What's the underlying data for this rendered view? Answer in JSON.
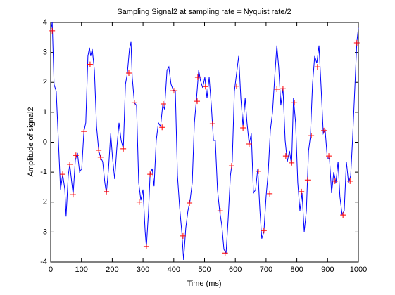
{
  "chart_data": {
    "type": "line",
    "title": "Sampling Signal2 at sampling rate = Nyquist rate/2",
    "xlabel": "Time (ms)",
    "ylabel": "Amplitude of signal2",
    "xlim": [
      0,
      1000
    ],
    "ylim": [
      -4,
      4
    ],
    "xticks": [
      0,
      100,
      200,
      300,
      400,
      500,
      600,
      700,
      800,
      900,
      1000
    ],
    "yticks": [
      -4,
      -3,
      -2,
      -1,
      0,
      1,
      2,
      3,
      4
    ],
    "series": [
      {
        "color": "#0000ff",
        "marker": "none",
        "x": [
          0,
          5,
          11,
          18,
          25,
          32,
          39,
          46,
          50,
          57,
          62,
          66,
          73,
          80,
          87,
          94,
          101,
          108,
          114,
          121,
          126,
          130,
          135,
          142,
          149,
          156,
          162,
          169,
          176,
          181,
          188,
          195,
          201,
          208,
          215,
          222,
          229,
          236,
          243,
          249,
          256,
          261,
          265,
          272,
          279,
          286,
          293,
          300,
          307,
          311,
          318,
          323,
          330,
          336,
          343,
          350,
          357,
          364,
          370,
          378,
          384,
          391,
          398,
          405,
          412,
          419,
          426,
          432,
          439,
          446,
          453,
          460,
          467,
          474,
          481,
          487,
          494,
          501,
          508,
          515,
          522,
          529,
          535,
          542,
          549,
          556,
          563,
          570,
          577,
          584,
          590,
          597,
          604,
          611,
          618,
          625,
          632,
          638,
          645,
          652,
          659,
          666,
          673,
          680,
          686,
          693,
          700,
          707,
          714,
          721,
          728,
          735,
          741,
          748,
          755,
          762,
          769,
          776,
          783,
          789,
          796,
          803,
          810,
          817,
          824,
          831,
          838,
          844,
          851,
          858,
          865,
          872,
          879,
          886,
          892,
          899,
          906,
          913,
          920,
          927,
          934,
          940,
          947,
          954,
          961,
          968,
          975,
          981,
          988,
          995,
          1000
        ],
        "values": [
          3.72,
          4.0,
          1.93,
          1.7,
          0.06,
          -1.58,
          -1.07,
          -1.58,
          -2.48,
          -1.12,
          -0.74,
          -1.12,
          -1.75,
          -0.6,
          -0.36,
          -1.0,
          -0.88,
          0.36,
          0.65,
          2.88,
          3.16,
          2.88,
          3.11,
          2.41,
          0.53,
          -0.27,
          -0.5,
          -0.65,
          -1.35,
          -1.7,
          -0.88,
          0.29,
          -0.53,
          -1.23,
          -0.18,
          0.65,
          0.06,
          -0.22,
          1.94,
          2.29,
          3.11,
          3.35,
          2.17,
          1.32,
          1.23,
          -1.35,
          -1.94,
          -1.58,
          -2.99,
          -3.51,
          -2.29,
          -1.07,
          -0.88,
          -1.47,
          0.06,
          0.65,
          0.53,
          1.23,
          1.11,
          2.41,
          2.52,
          1.94,
          1.75,
          1.72,
          -1.12,
          -2.17,
          -2.99,
          -3.93,
          -2.87,
          -2.29,
          -1.94,
          -1.35,
          0.65,
          1.47,
          2.41,
          2.05,
          1.82,
          2.17,
          1.47,
          2.17,
          1.23,
          0.06,
          0.06,
          -1.58,
          -2.29,
          -2.76,
          -3.58,
          -3.7,
          -2.52,
          -1.12,
          -0.65,
          1.7,
          2.29,
          2.88,
          1.47,
          0.53,
          1.47,
          0.65,
          -0.06,
          0.29,
          -1.7,
          -1.58,
          -0.88,
          -2.29,
          -3.22,
          -2.99,
          -1.82,
          -1.0,
          0.41,
          1.0,
          2.17,
          3.23,
          2.52,
          1.23,
          1.82,
          0.06,
          -0.65,
          -0.29,
          -0.76,
          1.47,
          0.65,
          -1.35,
          -2.29,
          -1.7,
          -2.99,
          -2.29,
          -0.29,
          0.18,
          1.94,
          2.88,
          2.64,
          3.23,
          1.82,
          0.29,
          0.41,
          -0.53,
          -0.53,
          -1.7,
          -1.0,
          -1.35,
          -0.65,
          -1.82,
          -2.41,
          -2.29,
          -0.65,
          -1.35,
          -1.12,
          0.06,
          1.7,
          3.35,
          3.82
        ]
      },
      {
        "color": "#ff0000",
        "marker": "+",
        "x": [
          5,
          39,
          62,
          73,
          82,
          108,
          128,
          156,
          162,
          181,
          236,
          254,
          272,
          288,
          311,
          323,
          362,
          366,
          398,
          403,
          430,
          451,
          476,
          478,
          503,
          526,
          551,
          567,
          588,
          604,
          625,
          645,
          675,
          693,
          712,
          735,
          755,
          764,
          783,
          792,
          815,
          835,
          847,
          867,
          888,
          904,
          924,
          950,
          973,
          995
        ],
        "values": [
          3.72,
          -1.07,
          -0.74,
          -1.75,
          -0.44,
          0.36,
          2.6,
          -0.27,
          -0.5,
          -1.65,
          -0.22,
          2.31,
          1.32,
          -2.0,
          -3.48,
          -1.07,
          0.5,
          1.28,
          1.72,
          1.72,
          -3.13,
          -2.03,
          1.37,
          2.17,
          1.86,
          0.62,
          -2.29,
          -3.7,
          -0.79,
          1.87,
          0.48,
          -0.06,
          -0.97,
          -2.95,
          -1.72,
          1.77,
          1.79,
          -0.46,
          -0.69,
          1.32,
          -1.65,
          -1.26,
          0.22,
          2.52,
          0.39,
          -0.46,
          -1.3,
          -2.43,
          -1.3,
          3.32
        ]
      }
    ]
  }
}
